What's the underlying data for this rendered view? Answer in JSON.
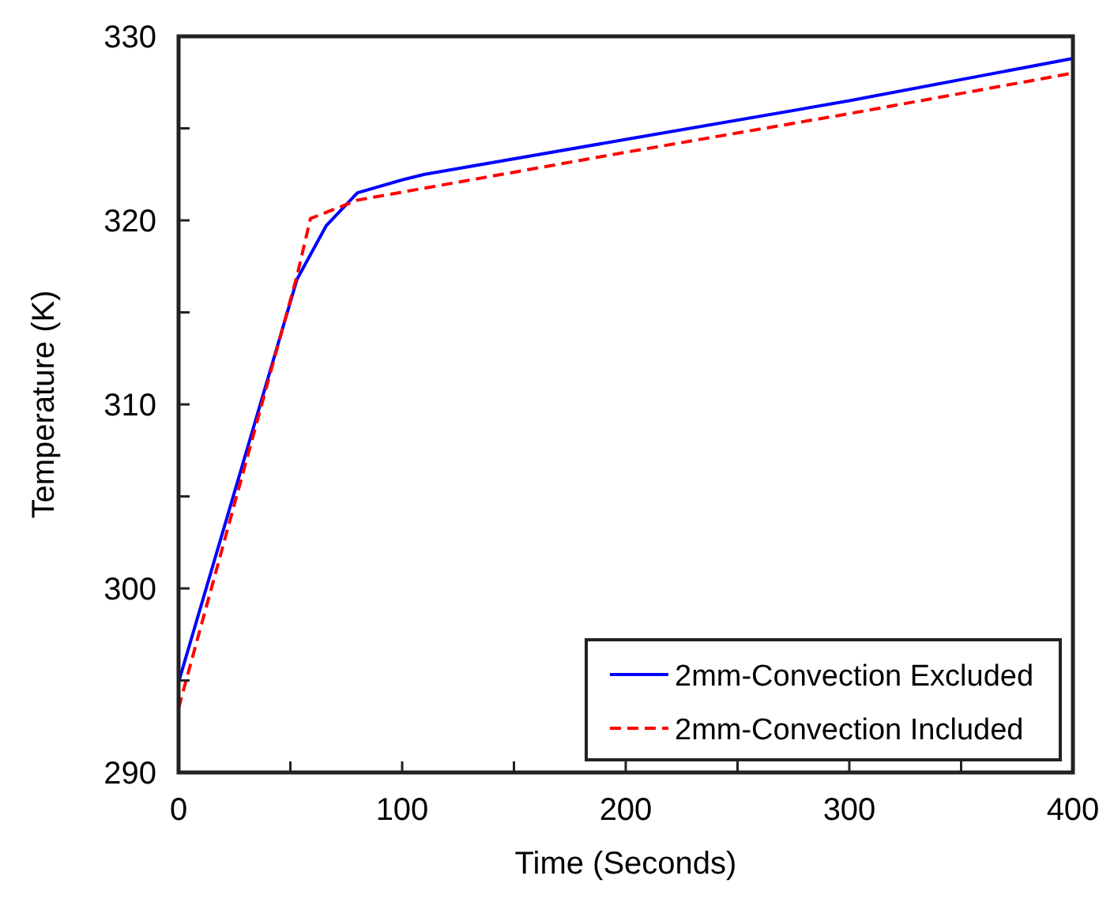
{
  "chart_data": {
    "type": "line",
    "xlabel": "Time (Seconds)",
    "ylabel": "Temperature (K)",
    "xlim": [
      0,
      400
    ],
    "ylim": [
      290,
      330
    ],
    "xticks": [
      0,
      {
        "value": 50,
        "label": null
      },
      100,
      {
        "value": 150,
        "label": null
      },
      200,
      {
        "value": 250,
        "label": null
      },
      300,
      {
        "value": 350,
        "label": null
      },
      400
    ],
    "yticks": [
      290,
      {
        "value": 295,
        "label": null
      },
      300,
      {
        "value": 305,
        "label": null
      },
      310,
      {
        "value": 315,
        "label": null
      },
      320,
      {
        "value": 325,
        "label": null
      },
      330
    ],
    "grid": false,
    "legend": "bottom right",
    "series": [
      {
        "name": "2mm-Convection Excluded",
        "color": "#0000ff",
        "line_style": "solid",
        "x": [
          0,
          53,
          66,
          80,
          100,
          110,
          200,
          300,
          400
        ],
        "values": [
          294.9,
          316.8,
          319.7,
          321.5,
          322.2,
          322.5,
          324.4,
          326.5,
          328.8
        ]
      },
      {
        "name": "2mm-Convection Included",
        "color": "#ff0000",
        "line_style": "dashed",
        "x": [
          0,
          53,
          59,
          80,
          200,
          300,
          400
        ],
        "values": [
          293.5,
          317,
          320.1,
          321.1,
          323.7,
          325.8,
          328
        ]
      }
    ]
  }
}
